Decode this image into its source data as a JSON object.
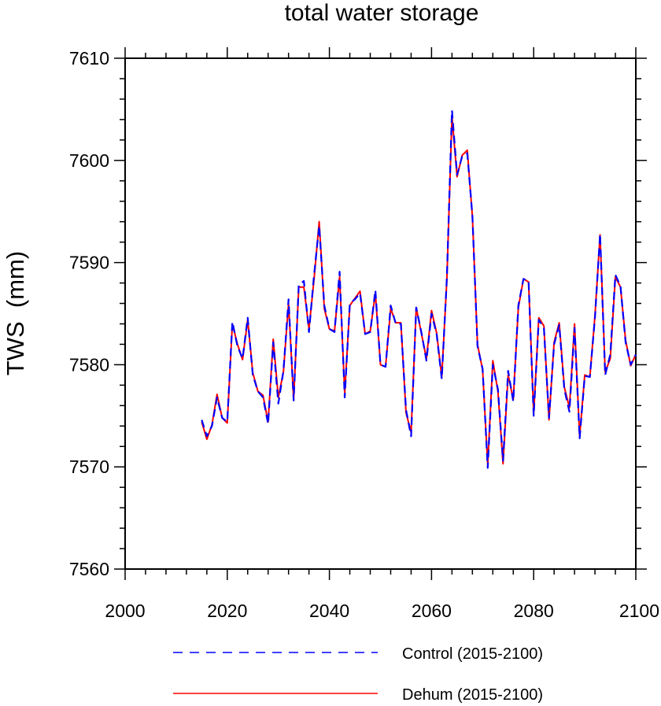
{
  "chart_data": {
    "type": "line",
    "title": "total water storage",
    "xlabel": "",
    "ylabel": "TWS  (mm)",
    "xlim": [
      2000,
      2100
    ],
    "ylim": [
      7560,
      7610
    ],
    "x_ticks": [
      2000,
      2020,
      2040,
      2060,
      2080,
      2100
    ],
    "y_ticks": [
      7560,
      7570,
      7580,
      7590,
      7600,
      7610
    ],
    "grid": false,
    "legend_position": "bottom",
    "x": [
      2015,
      2016,
      2017,
      2018,
      2019,
      2020,
      2021,
      2022,
      2023,
      2024,
      2025,
      2026,
      2027,
      2028,
      2029,
      2030,
      2031,
      2032,
      2033,
      2034,
      2035,
      2036,
      2037,
      2038,
      2039,
      2040,
      2041,
      2042,
      2043,
      2044,
      2045,
      2046,
      2047,
      2048,
      2049,
      2050,
      2051,
      2052,
      2053,
      2054,
      2055,
      2056,
      2057,
      2058,
      2059,
      2060,
      2061,
      2062,
      2063,
      2064,
      2065,
      2066,
      2067,
      2068,
      2069,
      2070,
      2071,
      2072,
      2073,
      2074,
      2075,
      2076,
      2077,
      2078,
      2079,
      2080,
      2081,
      2082,
      2083,
      2084,
      2085,
      2086,
      2087,
      2088,
      2089,
      2090,
      2091,
      2092,
      2093,
      2094,
      2095,
      2096,
      2097,
      2098,
      2099,
      2100
    ],
    "series": [
      {
        "name": "Control (2015-2100)",
        "color": "#0000ff",
        "style": "dashed",
        "values": [
          7574.6,
          7573.0,
          7574.0,
          7576.8,
          7574.8,
          7574.4,
          7584.2,
          7581.8,
          7580.6,
          7584.6,
          7579.0,
          7577.4,
          7576.8,
          7574.2,
          7582.2,
          7576.2,
          7579.4,
          7586.4,
          7576.5,
          7587.8,
          7588.2,
          7583.2,
          7588.8,
          7593.6,
          7585.8,
          7583.5,
          7583.2,
          7589.1,
          7576.8,
          7586.0,
          7586.4,
          7587.0,
          7583.0,
          7583.2,
          7587.3,
          7580.0,
          7579.8,
          7585.8,
          7584.0,
          7584.0,
          7575.6,
          7573.0,
          7585.6,
          7583.2,
          7580.4,
          7585.0,
          7583.0,
          7578.6,
          7588.5,
          7604.9,
          7598.6,
          7600.4,
          7600.7,
          7594.6,
          7581.8,
          7579.6,
          7569.9,
          7580.0,
          7577.6,
          7570.6,
          7579.4,
          7576.4,
          7585.8,
          7588.4,
          7588.2,
          7575.0,
          7584.4,
          7583.6,
          7574.8,
          7582.0,
          7583.9,
          7577.6,
          7575.4,
          7583.6,
          7572.8,
          7578.9,
          7578.8,
          7584.6,
          7592.8,
          7579.0,
          7581.0,
          7588.8,
          7587.7,
          7582.2,
          7580.0,
          7581.0
        ]
      },
      {
        "name": "Dehum (2015-2100)",
        "color": "#ff0000",
        "style": "solid",
        "values": [
          7574.4,
          7572.7,
          7574.1,
          7577.1,
          7574.8,
          7574.3,
          7584.0,
          7582.0,
          7580.5,
          7584.4,
          7579.2,
          7577.4,
          7577.0,
          7574.4,
          7582.5,
          7576.8,
          7579.3,
          7586.0,
          7576.6,
          7587.6,
          7587.6,
          7583.5,
          7588.4,
          7594.0,
          7585.5,
          7583.5,
          7583.3,
          7588.6,
          7577.2,
          7585.8,
          7586.5,
          7587.2,
          7583.0,
          7583.3,
          7587.0,
          7580.0,
          7579.8,
          7585.5,
          7584.1,
          7584.1,
          7575.3,
          7573.4,
          7585.6,
          7583.1,
          7580.6,
          7585.3,
          7583.1,
          7578.8,
          7588.3,
          7604.3,
          7598.4,
          7600.5,
          7601.0,
          7594.5,
          7582.0,
          7579.5,
          7570.2,
          7580.4,
          7577.4,
          7570.3,
          7579.0,
          7576.6,
          7585.6,
          7588.4,
          7588.1,
          7575.2,
          7584.6,
          7583.8,
          7574.6,
          7582.2,
          7584.1,
          7577.8,
          7575.8,
          7584.0,
          7573.0,
          7579.0,
          7578.8,
          7584.8,
          7592.7,
          7579.3,
          7580.6,
          7588.6,
          7587.6,
          7582.4,
          7579.9,
          7581.0
        ]
      }
    ]
  }
}
